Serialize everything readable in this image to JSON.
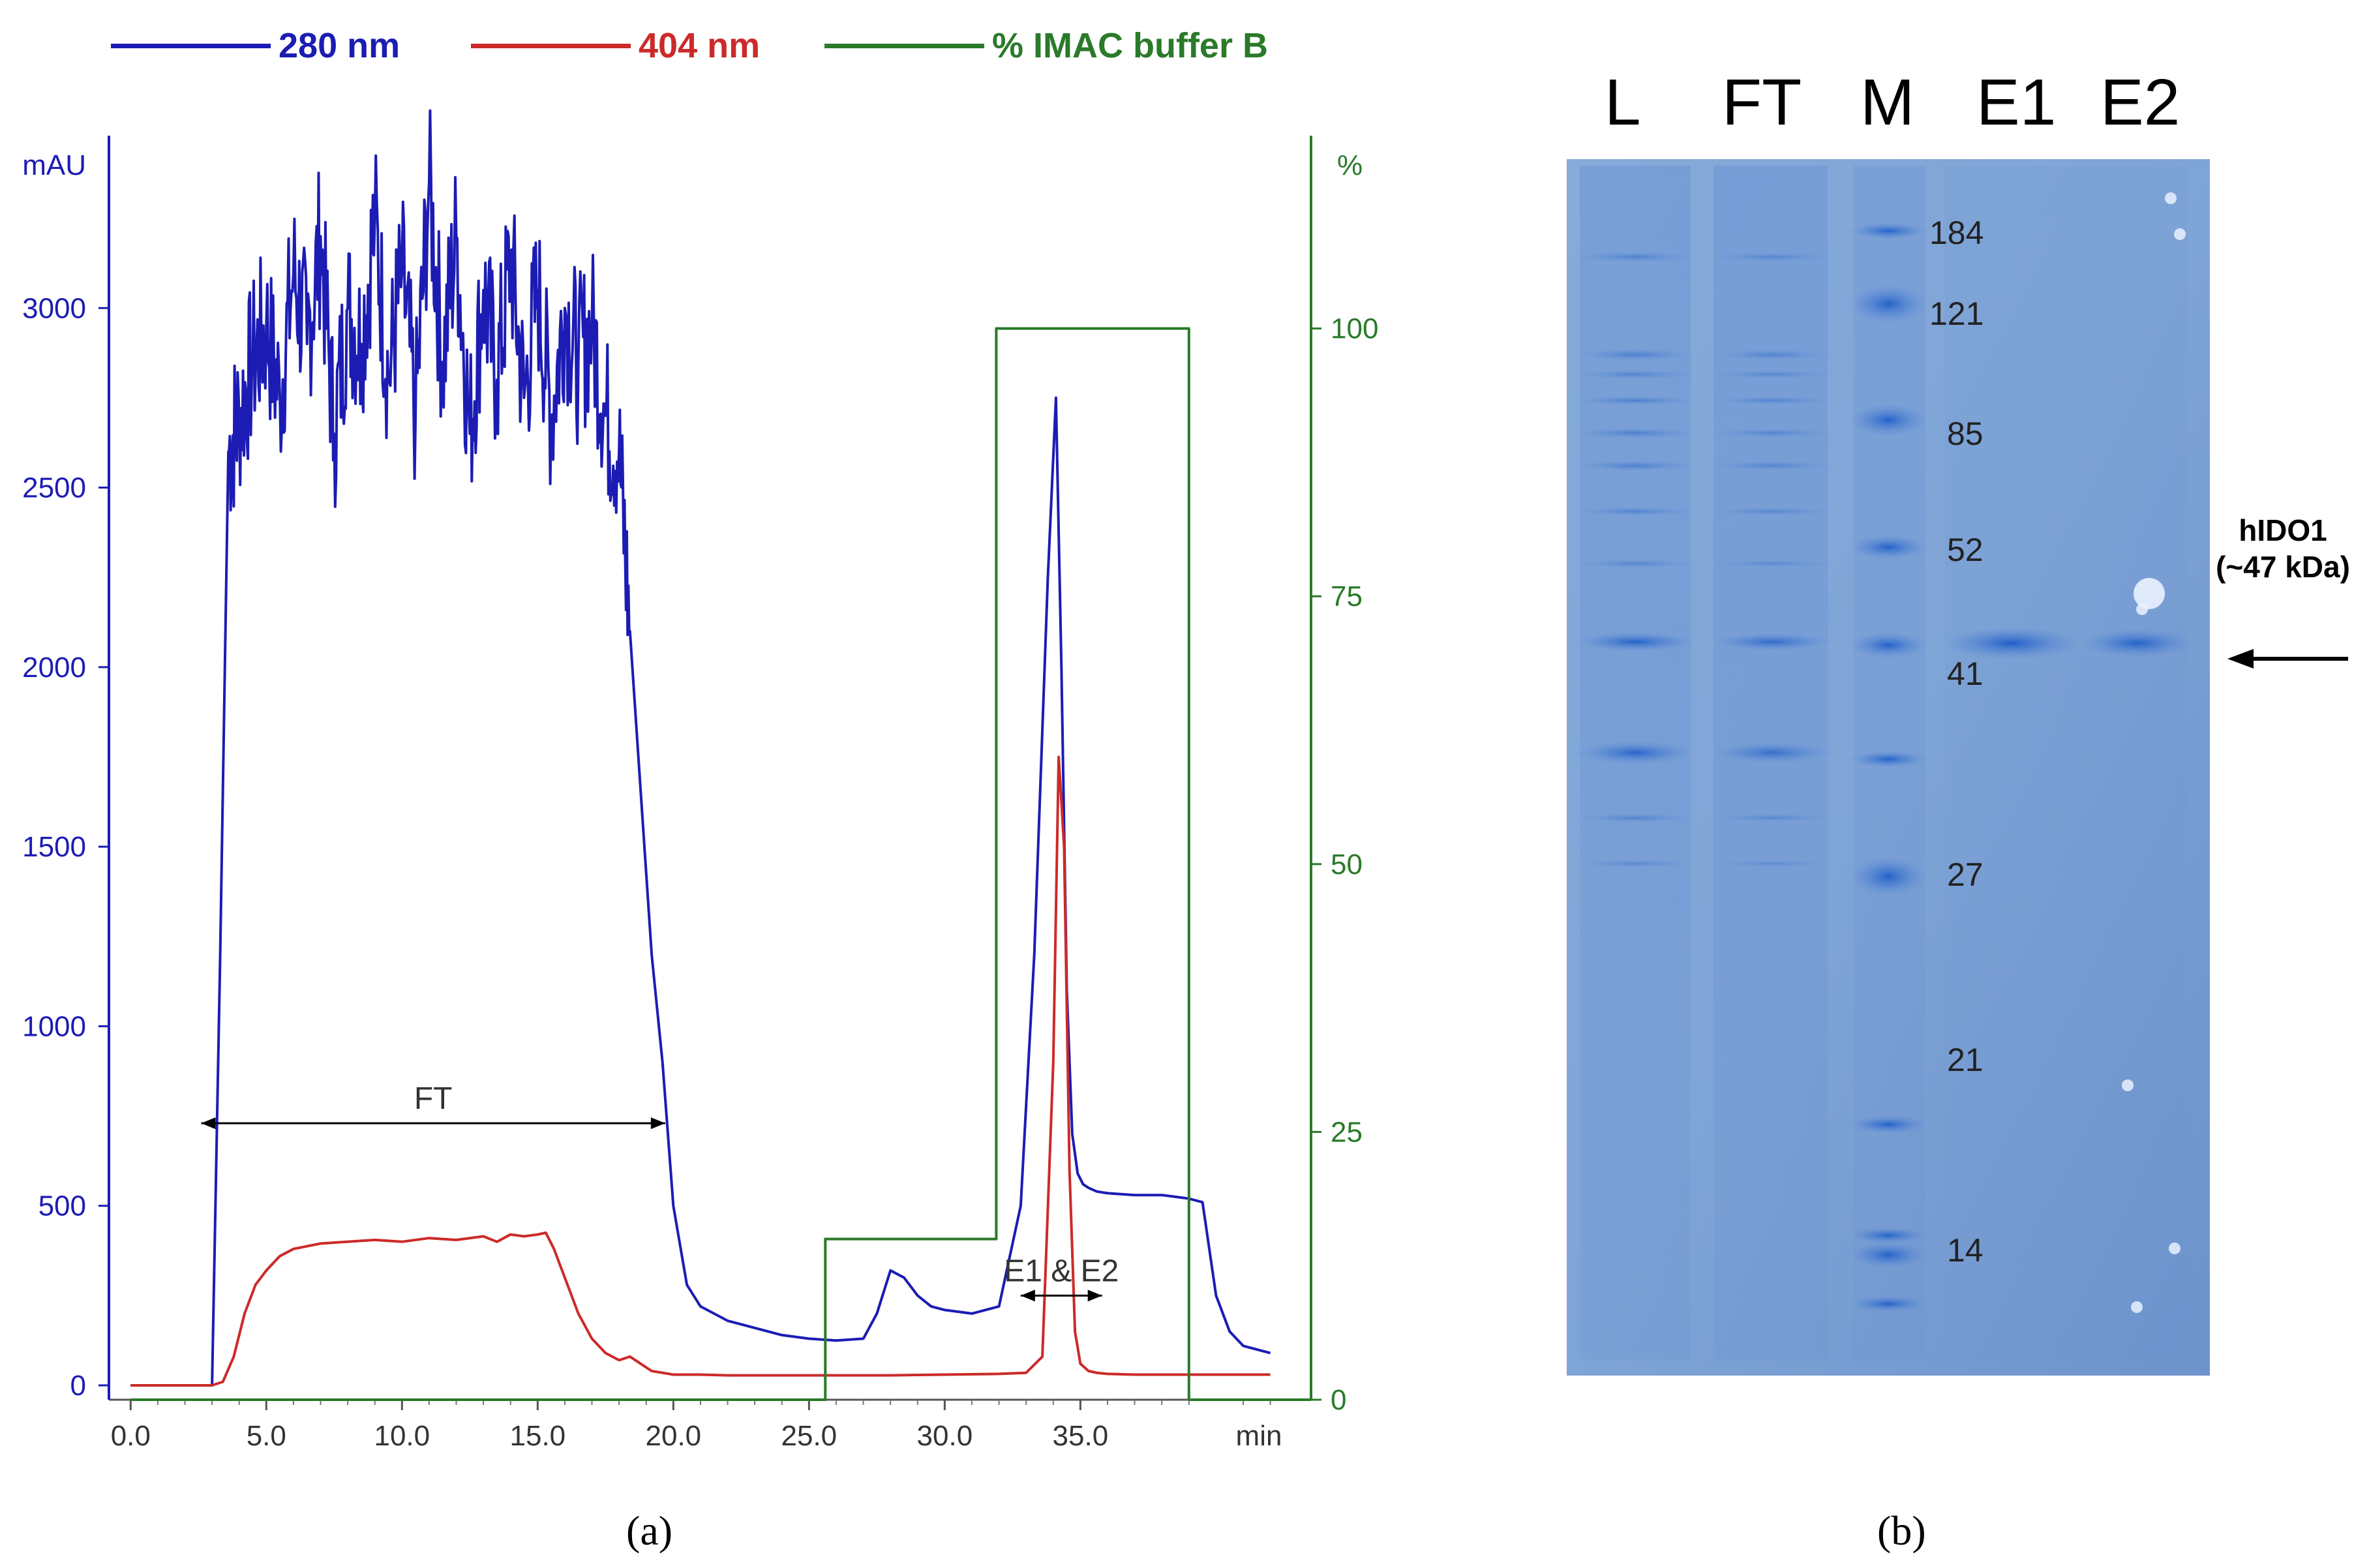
{
  "panel_a_label": "(a)",
  "panel_b_label": "(b)",
  "colors": {
    "uv280": "#1c1cb4",
    "uv404": "#cc2a2a",
    "buffer": "#2a7a2a",
    "axis_left": "#1c1cb4",
    "axis_right": "#2a7a2a",
    "annotation": "#000000",
    "gel_bg": "#7fa6d8"
  },
  "chart_data": {
    "type": "line",
    "title": "",
    "xlabel": "min",
    "ylabel_left": "mAU",
    "ylabel_right": "%",
    "xlim": [
      -0.8,
      43.5
    ],
    "ylim_left": [
      -40,
      3480
    ],
    "ylim_right": [
      0,
      118
    ],
    "x_ticks": [
      0,
      5,
      10,
      15,
      20,
      25,
      30,
      35
    ],
    "x_tick_labels": [
      "0.0",
      "5.0",
      "10.0",
      "15.0",
      "20.0",
      "25.0",
      "30.0",
      "35.0"
    ],
    "y_left_ticks": [
      0,
      500,
      1000,
      1500,
      2000,
      2500,
      3000
    ],
    "y_left_tick_labels": [
      "0",
      "500",
      "1000",
      "1500",
      "2000",
      "2500",
      "3000"
    ],
    "y_right_ticks": [
      0,
      25,
      50,
      75,
      100
    ],
    "y_right_tick_labels": [
      "0",
      "25",
      "50",
      "75",
      "100"
    ],
    "legend": [
      "280 nm",
      "404 nm",
      "% IMAC buffer B"
    ],
    "series": [
      {
        "name": "280 nm",
        "axis": "left",
        "x": [
          0,
          2,
          3.0,
          3.3,
          3.6,
          4.0,
          4.5,
          5,
          5.5,
          6,
          6.5,
          7,
          7.5,
          8,
          8.5,
          9,
          9.5,
          10,
          10.5,
          11,
          11.5,
          12,
          12.5,
          13,
          13.5,
          14,
          14.5,
          15,
          15.5,
          16,
          16.5,
          17,
          17.5,
          18.0,
          18.4,
          18.8,
          19.2,
          19.6,
          20.0,
          20.5,
          21,
          22,
          23,
          24,
          25,
          26,
          27,
          27.5,
          28.0,
          28.5,
          29.0,
          29.5,
          30,
          31,
          32,
          32.8,
          33.3,
          33.8,
          34.1,
          34.3,
          34.5,
          34.7,
          34.9,
          35.1,
          35.3,
          35.6,
          36,
          37,
          38,
          38.5,
          39.0,
          39.5,
          40.0,
          40.5,
          41,
          42
        ],
        "y": [
          0,
          0,
          0,
          1200,
          2600,
          2700,
          2850,
          2950,
          2750,
          3100,
          2900,
          3200,
          2650,
          3000,
          2900,
          3250,
          2800,
          3100,
          2700,
          3350,
          2850,
          3200,
          2650,
          3050,
          2800,
          3150,
          2750,
          3050,
          2700,
          3000,
          2850,
          2950,
          2700,
          2600,
          2100,
          1650,
          1200,
          900,
          500,
          280,
          220,
          180,
          160,
          140,
          130,
          125,
          130,
          200,
          320,
          300,
          250,
          220,
          210,
          200,
          220,
          500,
          1200,
          2250,
          2750,
          2000,
          1100,
          700,
          590,
          560,
          550,
          540,
          535,
          530,
          530,
          525,
          520,
          510,
          250,
          150,
          110,
          90
        ],
        "noise_range_x": [
          3.6,
          18.4
        ]
      },
      {
        "name": "404 nm",
        "axis": "left",
        "x": [
          0,
          3.0,
          3.4,
          3.8,
          4.2,
          4.6,
          5.0,
          5.5,
          6,
          7,
          8,
          9,
          10,
          11,
          12,
          13,
          13.5,
          14,
          14.5,
          15,
          15.3,
          15.6,
          16.0,
          16.5,
          17,
          17.5,
          18.0,
          18.4,
          18.8,
          19.2,
          19.6,
          20,
          21,
          22,
          24,
          26,
          28,
          30,
          32,
          33,
          33.6,
          34.0,
          34.2,
          34.4,
          34.6,
          34.8,
          35.0,
          35.3,
          35.6,
          36,
          37,
          38,
          39,
          40,
          42
        ],
        "y": [
          0,
          0,
          10,
          80,
          200,
          280,
          320,
          360,
          380,
          395,
          400,
          405,
          400,
          410,
          405,
          415,
          400,
          420,
          415,
          420,
          425,
          380,
          300,
          200,
          130,
          90,
          70,
          80,
          60,
          40,
          35,
          30,
          30,
          28,
          28,
          28,
          28,
          30,
          32,
          35,
          80,
          900,
          1750,
          1500,
          600,
          150,
          60,
          40,
          35,
          32,
          30,
          30,
          30,
          30,
          30
        ]
      },
      {
        "name": "% IMAC buffer B",
        "axis": "right",
        "x": [
          0,
          25.6,
          25.6,
          31.9,
          31.9,
          39.0,
          39.0,
          43.5
        ],
        "y": [
          0,
          0,
          15,
          15,
          100,
          100,
          0,
          0
        ]
      }
    ],
    "annotations": [
      {
        "label": "FT",
        "x_start": 2.6,
        "x_end": 19.7,
        "y": 730
      },
      {
        "label": "E1 & E2",
        "x_start": 32.8,
        "x_end": 35.8,
        "y": 250
      }
    ]
  },
  "gel": {
    "lane_labels": [
      "L",
      "FT",
      "M",
      "E1",
      "E2"
    ],
    "marker_weights": [
      "184",
      "121",
      "85",
      "52",
      "41",
      "27",
      "21",
      "14"
    ],
    "target_label_line1": "hIDO1",
    "target_label_line2": "(~47 kDa)"
  }
}
